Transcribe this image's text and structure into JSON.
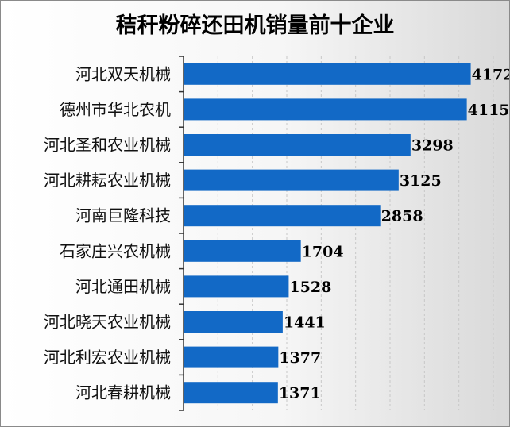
{
  "chart_data": {
    "type": "bar",
    "orientation": "horizontal",
    "title": "秸秆粉碎还田机销量前十企业",
    "categories": [
      "河北双天机械",
      "德州市华北农机",
      "河北圣和农业机械",
      "河北耕耘农业机械",
      "河南巨隆科技",
      "石家庄兴农机械",
      "河北通田机械",
      "河北晓天农业机械",
      "河北利宏农业机械",
      "河北春耕机械"
    ],
    "values": [
      4172,
      4115,
      3298,
      3125,
      2858,
      1704,
      1528,
      1441,
      1377,
      1371
    ],
    "xlim": [
      0,
      4500
    ],
    "xgrid_step": 500,
    "bar_color": "#1269c6",
    "xlabel": "",
    "ylabel": "",
    "grid": true
  }
}
